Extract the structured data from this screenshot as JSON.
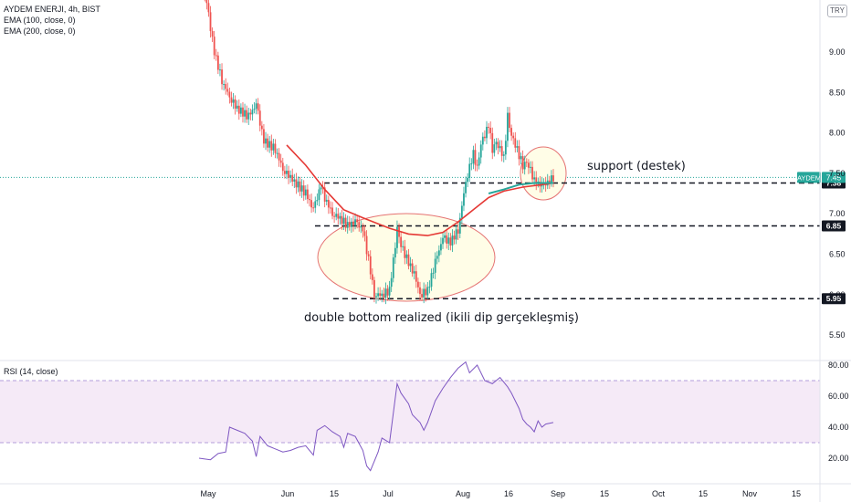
{
  "header": {
    "symbol_line": "AYDEM ENERJI, 4h, BIST",
    "ema100_label": "EMA (100, close, 0)",
    "ema200_label": "EMA (200, close, 0)",
    "currency": "TRY"
  },
  "rsi_panel": {
    "label": "RSI (14, close)"
  },
  "colors": {
    "up": "#26a69a",
    "down": "#ef5350",
    "ema100": "#26a69a",
    "ema200": "#e53935",
    "rsi_line": "#7e57c2",
    "rsi_band": "#f3e5f5",
    "annotation_fill": "#fffde7",
    "annotation_stroke": "#e57373"
  },
  "chart_data": [
    {
      "type": "candlestick",
      "title": "",
      "price_axis": {
        "ylim": [
          5.3,
          10.1
        ],
        "ticks": [
          "9.00",
          "8.50",
          "8.00",
          "7.50",
          "7.00",
          "6.50",
          "6.00",
          "5.50"
        ]
      },
      "time_axis": {
        "ticks": [
          "May",
          "Jun",
          "15",
          "Jul",
          "Aug",
          "16",
          "Sep",
          "15",
          "Oct",
          "15",
          "Nov",
          "15"
        ]
      },
      "price_line": {
        "label": "AYDEM",
        "value": "7.45"
      },
      "levels": [
        {
          "value": 7.38,
          "label": "7.38"
        },
        {
          "value": 6.85,
          "label": "6.85"
        },
        {
          "value": 5.95,
          "label": "5.95"
        }
      ],
      "annotations": [
        {
          "text": "support (destek)"
        },
        {
          "text": "double bottom realized (ikili dip gerçekleşmiş)"
        }
      ],
      "close_path": [
        {
          "t": 0,
          "v": 9.95
        },
        {
          "t": 2,
          "v": 9.6
        },
        {
          "t": 4,
          "v": 9.0
        },
        {
          "t": 6,
          "v": 8.65
        },
        {
          "t": 8,
          "v": 8.45
        },
        {
          "t": 10,
          "v": 8.3
        },
        {
          "t": 13,
          "v": 8.2
        },
        {
          "t": 15,
          "v": 8.35
        },
        {
          "t": 17,
          "v": 7.9
        },
        {
          "t": 20,
          "v": 7.8
        },
        {
          "t": 22,
          "v": 7.55
        },
        {
          "t": 25,
          "v": 7.4
        },
        {
          "t": 28,
          "v": 7.25
        },
        {
          "t": 30,
          "v": 7.05
        },
        {
          "t": 32,
          "v": 7.35
        },
        {
          "t": 33,
          "v": 7.2
        },
        {
          "t": 35,
          "v": 7.0
        },
        {
          "t": 37,
          "v": 6.95
        },
        {
          "t": 39,
          "v": 6.85
        },
        {
          "t": 41,
          "v": 6.9
        },
        {
          "t": 43,
          "v": 6.8
        },
        {
          "t": 45,
          "v": 6.3
        },
        {
          "t": 46,
          "v": 6.0
        },
        {
          "t": 48,
          "v": 6.0
        },
        {
          "t": 50,
          "v": 6.05
        },
        {
          "t": 52,
          "v": 6.8
        },
        {
          "t": 53,
          "v": 6.6
        },
        {
          "t": 55,
          "v": 6.4
        },
        {
          "t": 57,
          "v": 6.2
        },
        {
          "t": 58,
          "v": 6.0
        },
        {
          "t": 60,
          "v": 6.05
        },
        {
          "t": 62,
          "v": 6.4
        },
        {
          "t": 64,
          "v": 6.7
        },
        {
          "t": 66,
          "v": 6.65
        },
        {
          "t": 68,
          "v": 6.8
        },
        {
          "t": 70,
          "v": 7.4
        },
        {
          "t": 72,
          "v": 7.75
        },
        {
          "t": 73,
          "v": 7.55
        },
        {
          "t": 74,
          "v": 7.85
        },
        {
          "t": 76,
          "v": 8.1
        },
        {
          "t": 77,
          "v": 7.8
        },
        {
          "t": 78,
          "v": 7.9
        },
        {
          "t": 80,
          "v": 7.7
        },
        {
          "t": 81,
          "v": 8.2
        },
        {
          "t": 82,
          "v": 7.95
        },
        {
          "t": 83,
          "v": 7.85
        },
        {
          "t": 85,
          "v": 7.6
        },
        {
          "t": 86,
          "v": 7.65
        },
        {
          "t": 87,
          "v": 7.55
        },
        {
          "t": 88,
          "v": 7.4
        },
        {
          "t": 90,
          "v": 7.35
        },
        {
          "t": 92,
          "v": 7.4
        },
        {
          "t": 93,
          "v": 7.45
        }
      ],
      "ema100_path": [
        {
          "t": 23,
          "v": 7.85
        },
        {
          "t": 28,
          "v": 7.6
        },
        {
          "t": 33,
          "v": 7.3
        },
        {
          "t": 38,
          "v": 7.05
        },
        {
          "t": 43,
          "v": 6.95
        },
        {
          "t": 50,
          "v": 6.82
        },
        {
          "t": 55,
          "v": 6.75
        },
        {
          "t": 60,
          "v": 6.73
        },
        {
          "t": 64,
          "v": 6.77
        },
        {
          "t": 68,
          "v": 6.9
        },
        {
          "t": 72,
          "v": 7.05
        },
        {
          "t": 76,
          "v": 7.2
        },
        {
          "t": 80,
          "v": 7.28
        },
        {
          "t": 85,
          "v": 7.33
        },
        {
          "t": 90,
          "v": 7.36
        },
        {
          "t": 93,
          "v": 7.38
        }
      ],
      "ema200_path": [
        {
          "t": 76,
          "v": 7.25
        },
        {
          "t": 80,
          "v": 7.3
        },
        {
          "t": 84,
          "v": 7.36
        },
        {
          "t": 88,
          "v": 7.38
        },
        {
          "t": 93,
          "v": 7.38
        }
      ]
    },
    {
      "type": "line",
      "title": "",
      "series_label": "RSI (14, close)",
      "ylim": [
        10,
        85
      ],
      "ticks": [
        "80.00",
        "60.00",
        "40.00",
        "20.00"
      ],
      "band": [
        30,
        70
      ],
      "points": [
        {
          "t": 0,
          "v": 20
        },
        {
          "t": 3,
          "v": 19
        },
        {
          "t": 5,
          "v": 23
        },
        {
          "t": 7,
          "v": 24
        },
        {
          "t": 8,
          "v": 40
        },
        {
          "t": 10,
          "v": 38
        },
        {
          "t": 12,
          "v": 36
        },
        {
          "t": 14,
          "v": 31
        },
        {
          "t": 15,
          "v": 21
        },
        {
          "t": 16,
          "v": 34
        },
        {
          "t": 18,
          "v": 28
        },
        {
          "t": 20,
          "v": 26
        },
        {
          "t": 22,
          "v": 24
        },
        {
          "t": 24,
          "v": 25
        },
        {
          "t": 26,
          "v": 27
        },
        {
          "t": 28,
          "v": 28
        },
        {
          "t": 30,
          "v": 22
        },
        {
          "t": 31,
          "v": 38
        },
        {
          "t": 33,
          "v": 41
        },
        {
          "t": 35,
          "v": 37
        },
        {
          "t": 37,
          "v": 34
        },
        {
          "t": 38,
          "v": 27
        },
        {
          "t": 39,
          "v": 36
        },
        {
          "t": 41,
          "v": 34
        },
        {
          "t": 43,
          "v": 25
        },
        {
          "t": 44,
          "v": 15
        },
        {
          "t": 45,
          "v": 12
        },
        {
          "t": 46,
          "v": 18
        },
        {
          "t": 47,
          "v": 24
        },
        {
          "t": 48,
          "v": 33
        },
        {
          "t": 50,
          "v": 30
        },
        {
          "t": 52,
          "v": 68
        },
        {
          "t": 53,
          "v": 62
        },
        {
          "t": 55,
          "v": 55
        },
        {
          "t": 56,
          "v": 48
        },
        {
          "t": 58,
          "v": 43
        },
        {
          "t": 59,
          "v": 38
        },
        {
          "t": 60,
          "v": 43
        },
        {
          "t": 62,
          "v": 57
        },
        {
          "t": 64,
          "v": 65
        },
        {
          "t": 66,
          "v": 72
        },
        {
          "t": 68,
          "v": 78
        },
        {
          "t": 70,
          "v": 82
        },
        {
          "t": 71,
          "v": 75
        },
        {
          "t": 73,
          "v": 80
        },
        {
          "t": 75,
          "v": 70
        },
        {
          "t": 77,
          "v": 68
        },
        {
          "t": 79,
          "v": 72
        },
        {
          "t": 81,
          "v": 66
        },
        {
          "t": 82,
          "v": 62
        },
        {
          "t": 84,
          "v": 52
        },
        {
          "t": 85,
          "v": 45
        },
        {
          "t": 86,
          "v": 42
        },
        {
          "t": 87,
          "v": 40
        },
        {
          "t": 88,
          "v": 37
        },
        {
          "t": 89,
          "v": 44
        },
        {
          "t": 90,
          "v": 40
        },
        {
          "t": 91,
          "v": 42
        },
        {
          "t": 93,
          "v": 43
        }
      ]
    }
  ]
}
